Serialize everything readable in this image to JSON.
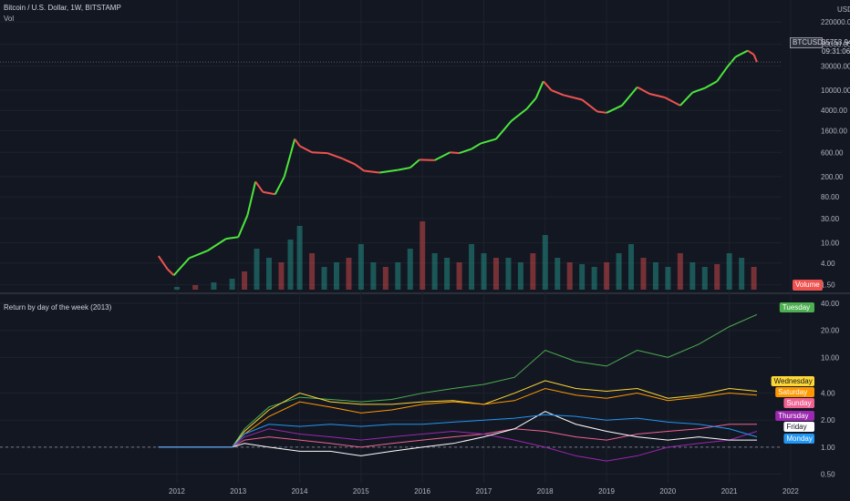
{
  "header": {
    "symbol_title": "Bitcoin / U.S. Dollar, 1W, BITSTAMP",
    "vol_label": "Vol",
    "indicator_title": "Return by day of the week (2013)"
  },
  "price_box": {
    "ticker": "BTCUSD",
    "price": "35753.94",
    "countdown": "09:31:06"
  },
  "volume_tag": "Volume",
  "colors": {
    "background": "#131722",
    "grid": "#1e222d",
    "candle_up": "#26a69a",
    "candle_up_bright": "#4ce63c",
    "candle_down": "#ef5350"
  },
  "chart_data": [
    {
      "type": "line",
      "title": "Bitcoin / U.S. Dollar, 1W, BITSTAMP",
      "scale": "log",
      "y_axis_ticks": [
        "220000.00",
        "80000.00",
        "30000.00",
        "10000.00",
        "4000.00",
        "1600.00",
        "600.00",
        "200.00",
        "80.00",
        "30.00",
        "10.00",
        "4.00",
        "1.50"
      ],
      "y_axis_unit": "USD",
      "x_axis_ticks": [
        "2012",
        "2013",
        "2014",
        "2015",
        "2016",
        "2017",
        "2018",
        "2019",
        "2020",
        "2021",
        "2022"
      ],
      "series": [
        {
          "name": "BTCUSD",
          "x": [
            2011.7,
            2011.85,
            2011.95,
            2012.2,
            2012.5,
            2012.8,
            2013.0,
            2013.15,
            2013.28,
            2013.4,
            2013.6,
            2013.75,
            2013.92,
            2014.0,
            2014.2,
            2014.45,
            2014.7,
            2014.9,
            2015.05,
            2015.3,
            2015.6,
            2015.8,
            2015.95,
            2016.2,
            2016.45,
            2016.6,
            2016.8,
            2016.95,
            2017.2,
            2017.45,
            2017.7,
            2017.85,
            2017.97,
            2018.1,
            2018.3,
            2018.6,
            2018.85,
            2019.0,
            2019.25,
            2019.5,
            2019.7,
            2019.95,
            2020.2,
            2020.4,
            2020.6,
            2020.8,
            2020.97,
            2021.1,
            2021.3,
            2021.4,
            2021.45
          ],
          "y": [
            5.5,
            3.0,
            2.3,
            5.0,
            7.0,
            12.0,
            13.0,
            35.0,
            160.0,
            100.0,
            90.0,
            200.0,
            1100.0,
            800.0,
            600.0,
            580.0,
            450.0,
            350.0,
            260.0,
            240.0,
            270.0,
            300.0,
            430.0,
            420.0,
            600.0,
            580.0,
            700.0,
            900.0,
            1100.0,
            2500.0,
            4300.0,
            7000.0,
            15000.0,
            10000.0,
            8000.0,
            6500.0,
            3800.0,
            3600.0,
            5000.0,
            11500.0,
            8500.0,
            7200.0,
            5000.0,
            9000.0,
            11000.0,
            15000.0,
            29000.0,
            45000.0,
            60000.0,
            50000.0,
            35753.94
          ]
        }
      ],
      "volume": {
        "name": "Volume",
        "x": [
          2012.0,
          2012.3,
          2012.6,
          2012.9,
          2013.1,
          2013.3,
          2013.5,
          2013.7,
          2013.85,
          2014.0,
          2014.2,
          2014.4,
          2014.6,
          2014.8,
          2015.0,
          2015.2,
          2015.4,
          2015.6,
          2015.8,
          2016.0,
          2016.2,
          2016.4,
          2016.6,
          2016.8,
          2017.0,
          2017.2,
          2017.4,
          2017.6,
          2017.8,
          2018.0,
          2018.2,
          2018.4,
          2018.6,
          2018.8,
          2019.0,
          2019.2,
          2019.4,
          2019.6,
          2019.8,
          2020.0,
          2020.2,
          2020.4,
          2020.6,
          2020.8,
          2021.0,
          2021.2,
          2021.4
        ],
        "values": [
          3,
          5,
          8,
          12,
          20,
          45,
          35,
          30,
          55,
          70,
          40,
          25,
          30,
          35,
          50,
          30,
          25,
          30,
          45,
          75,
          40,
          35,
          30,
          50,
          40,
          35,
          35,
          30,
          40,
          60,
          35,
          30,
          28,
          25,
          30,
          40,
          50,
          35,
          30,
          25,
          40,
          30,
          25,
          28,
          40,
          35,
          25
        ]
      }
    },
    {
      "type": "line",
      "title": "Return by day of the week (2013)",
      "scale": "log",
      "y_axis_ticks": [
        "40.00",
        "20.00",
        "10.00",
        "4.00",
        "2.00",
        "1.00",
        "0.50"
      ],
      "x_axis_ticks": [
        "2012",
        "2013",
        "2014",
        "2015",
        "2016",
        "2017",
        "2018",
        "2019",
        "2020",
        "2021",
        "2022"
      ],
      "x": [
        2011.7,
        2012.9,
        2013.1,
        2013.5,
        2014.0,
        2014.5,
        2015.0,
        2015.5,
        2016.0,
        2016.5,
        2017.0,
        2017.5,
        2018.0,
        2018.5,
        2019.0,
        2019.5,
        2020.0,
        2020.5,
        2021.0,
        2021.45
      ],
      "series": [
        {
          "name": "Tuesday",
          "color": "#4caf50",
          "values": [
            1,
            1,
            1.6,
            2.8,
            3.6,
            3.4,
            3.2,
            3.4,
            4.0,
            4.5,
            5.0,
            6.0,
            12.0,
            9.0,
            8.0,
            12.0,
            10.0,
            14.0,
            22.0,
            30.0
          ]
        },
        {
          "name": "Wednesday",
          "color": "#fdd835",
          "values": [
            1,
            1,
            1.5,
            2.6,
            4.0,
            3.2,
            3.0,
            3.0,
            3.2,
            3.3,
            3.0,
            4.0,
            5.5,
            4.5,
            4.2,
            4.5,
            3.5,
            3.8,
            4.5,
            4.2
          ]
        },
        {
          "name": "Saturday",
          "color": "#ff9800",
          "values": [
            1,
            1,
            1.4,
            2.2,
            3.2,
            2.8,
            2.4,
            2.6,
            3.0,
            3.2,
            3.0,
            3.3,
            4.5,
            3.8,
            3.5,
            4.0,
            3.3,
            3.6,
            4.0,
            3.8
          ]
        },
        {
          "name": "Sunday",
          "color": "#f06292",
          "values": [
            1,
            1,
            1.2,
            1.3,
            1.2,
            1.1,
            1.0,
            1.1,
            1.2,
            1.3,
            1.4,
            1.6,
            1.5,
            1.3,
            1.2,
            1.4,
            1.5,
            1.6,
            1.8,
            1.8
          ]
        },
        {
          "name": "Thursday",
          "color": "#9c27b0",
          "values": [
            1,
            1,
            1.3,
            1.6,
            1.4,
            1.3,
            1.2,
            1.3,
            1.4,
            1.5,
            1.4,
            1.2,
            1.0,
            0.8,
            0.7,
            0.8,
            1.0,
            1.1,
            1.2,
            1.5
          ]
        },
        {
          "name": "Friday",
          "color": "#ffffff",
          "values": [
            1,
            1,
            1.1,
            1.0,
            0.9,
            0.9,
            0.8,
            0.9,
            1.0,
            1.1,
            1.3,
            1.6,
            2.5,
            1.8,
            1.5,
            1.3,
            1.2,
            1.3,
            1.2,
            1.2
          ]
        },
        {
          "name": "Monday",
          "color": "#2196f3",
          "values": [
            1,
            1,
            1.4,
            1.8,
            1.7,
            1.8,
            1.7,
            1.8,
            1.8,
            1.9,
            2.0,
            2.1,
            2.3,
            2.2,
            2.0,
            2.1,
            1.9,
            1.8,
            1.6,
            1.3
          ]
        }
      ],
      "baseline": 1.0
    }
  ]
}
